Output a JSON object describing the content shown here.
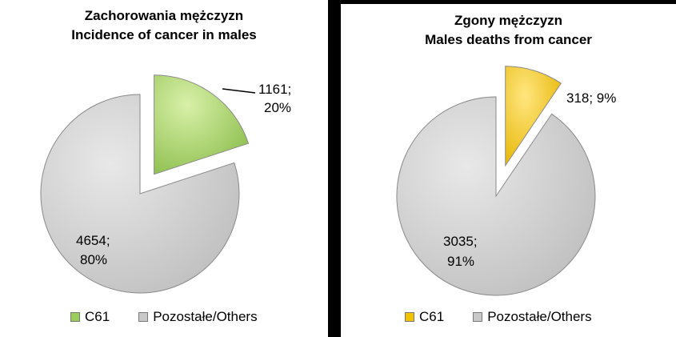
{
  "chart_data": [
    {
      "type": "pie",
      "title_line1": "Zachorowania mężczyzn",
      "title_line2": "Incidence of cancer in males",
      "slices": [
        {
          "name": "C61",
          "value": 1161,
          "percent": 20,
          "label_value": "1161;",
          "label_percent": "20%",
          "color": "#9ACD5A",
          "exploded": true
        },
        {
          "name": "Pozostałe/Others",
          "value": 4654,
          "percent": 80,
          "label_value": "4654;",
          "label_percent": "80%",
          "color": "#C9C9C9",
          "exploded": false
        }
      ],
      "legend": [
        "C61",
        "Pozostałe/Others"
      ],
      "legend_position": "bottom"
    },
    {
      "type": "pie",
      "title_line1": "Zgony mężczyzn",
      "title_line2": "Males deaths from cancer",
      "slices": [
        {
          "name": "C61",
          "value": 318,
          "percent": 9,
          "label_value": "318; 9%",
          "label_percent": "",
          "color": "#F2C200",
          "exploded": true
        },
        {
          "name": "Pozostałe/Others",
          "value": 3035,
          "percent": 91,
          "label_value": "3035;",
          "label_percent": "91%",
          "color": "#C9C9C9",
          "exploded": false
        }
      ],
      "legend": [
        "C61",
        "Pozostałe/Others"
      ],
      "legend_position": "bottom"
    }
  ]
}
